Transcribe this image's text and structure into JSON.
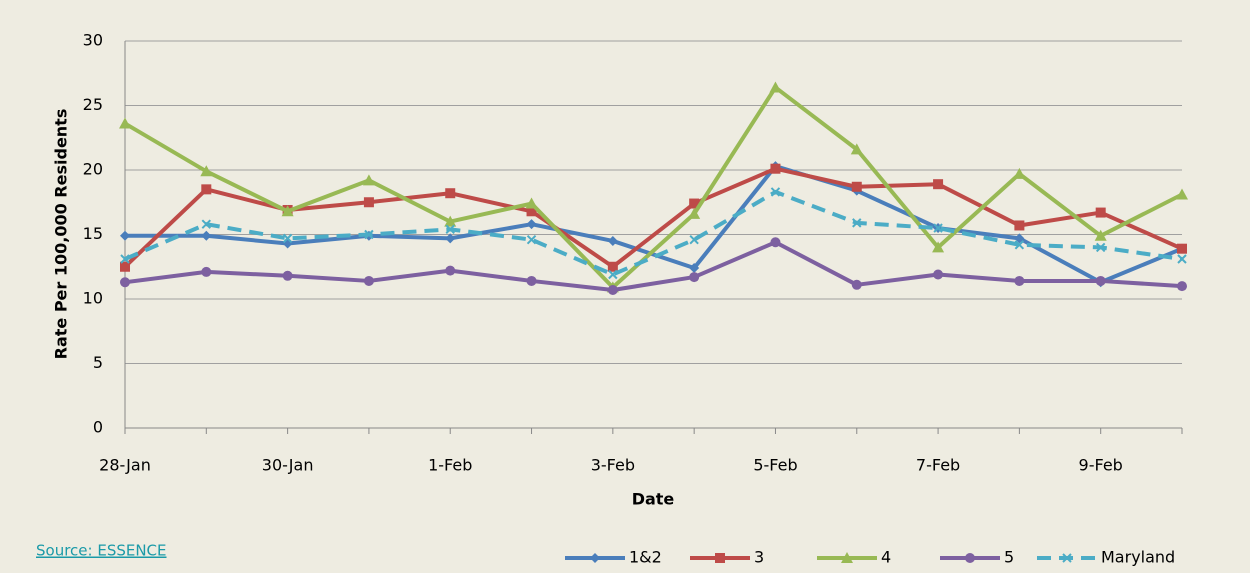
{
  "chart_data": {
    "type": "line",
    "x_label": "Date",
    "y_label": "Rate Per 100,000 Residents",
    "categories": [
      "28-Jan",
      null,
      "30-Jan",
      null,
      "1-Feb",
      null,
      "3-Feb",
      null,
      "5-Feb",
      null,
      "7-Feb",
      null,
      "9-Feb",
      null
    ],
    "series": [
      {
        "name": "1&2",
        "color": "#4a7ebb",
        "marker": "diamond",
        "values": [
          14.9,
          14.9,
          14.3,
          14.9,
          14.7,
          15.8,
          14.5,
          12.4,
          20.3,
          18.4,
          15.5,
          14.7,
          11.3,
          13.9
        ]
      },
      {
        "name": "3",
        "color": "#be4b48",
        "marker": "square",
        "values": [
          12.5,
          18.5,
          16.9,
          17.5,
          18.2,
          16.8,
          12.5,
          17.4,
          20.1,
          18.7,
          18.9,
          15.7,
          16.7,
          13.9
        ]
      },
      {
        "name": "4",
        "color": "#98b954",
        "marker": "triangle",
        "values": [
          23.6,
          19.9,
          16.8,
          19.2,
          16.0,
          17.4,
          10.9,
          16.6,
          26.4,
          21.6,
          14.0,
          19.7,
          14.9,
          18.1
        ]
      },
      {
        "name": "5",
        "color": "#7d60a0",
        "marker": "circle",
        "values": [
          11.3,
          12.1,
          11.8,
          11.4,
          12.2,
          11.4,
          10.7,
          11.7,
          14.4,
          11.1,
          11.9,
          11.4,
          11.4,
          11.0
        ]
      },
      {
        "name": "Maryland",
        "color": "#4bacc6",
        "marker": "x",
        "dashed": true,
        "values": [
          13.1,
          15.8,
          14.7,
          15.0,
          15.4,
          14.6,
          11.9,
          14.6,
          18.3,
          15.9,
          15.5,
          14.2,
          14.0,
          13.1
        ]
      }
    ],
    "ylim": [
      0,
      30
    ],
    "yticks": [
      0,
      5,
      10,
      15,
      20,
      25,
      30
    ],
    "grid": true,
    "legend": "bottom-right"
  },
  "source": "Source: ESSENCE"
}
